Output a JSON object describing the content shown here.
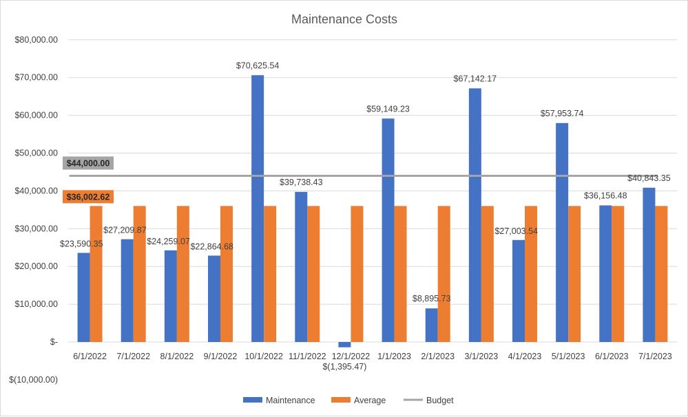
{
  "chart_data": {
    "type": "bar",
    "title": "Maintenance Costs",
    "xlabel": "",
    "ylabel": "",
    "ylim": [
      -10000,
      80000
    ],
    "y_ticks": [
      -10000,
      0,
      10000,
      20000,
      30000,
      40000,
      50000,
      60000,
      70000,
      80000
    ],
    "y_tick_labels": [
      "$(10,000.00)",
      "$-",
      "$10,000.00",
      "$20,000.00",
      "$30,000.00",
      "$40,000.00",
      "$50,000.00",
      "$60,000.00",
      "$70,000.00",
      "$80,000.00"
    ],
    "grid": true,
    "legend_position": "bottom",
    "categories": [
      "6/1/2022",
      "7/1/2022",
      "8/1/2022",
      "9/1/2022",
      "10/1/2022",
      "11/1/2022",
      "12/1/2022",
      "1/1/2023",
      "2/1/2023",
      "3/1/2023",
      "4/1/2023",
      "5/1/2023",
      "6/1/2023",
      "7/1/2023"
    ],
    "series": [
      {
        "name": "Maintenance",
        "kind": "bar",
        "color": "#4472C4",
        "values": [
          23590.35,
          27209.87,
          24259.07,
          22864.68,
          70625.54,
          39738.43,
          -1395.47,
          59149.23,
          8895.73,
          67142.17,
          27003.54,
          57953.74,
          36156.48,
          40843.35
        ],
        "labels": [
          "$23,590.35",
          "$27,209.87",
          "$24,259.07",
          "$22,864.68",
          "$70,625.54",
          "$39,738.43",
          "$(1,395.47)",
          "$59,149.23",
          "$8,895.73",
          "$67,142.17",
          "$27,003.54",
          "$57,953.74",
          "$36,156.48",
          "$40,843.35"
        ]
      },
      {
        "name": "Average",
        "kind": "bar",
        "color": "#ED7D31",
        "values": [
          36002.62,
          36002.62,
          36002.62,
          36002.62,
          36002.62,
          36002.62,
          36002.62,
          36002.62,
          36002.62,
          36002.62,
          36002.62,
          36002.62,
          36002.62,
          36002.62
        ],
        "callout_label": "$36,002.62",
        "callout_bg": "#ED7D31"
      },
      {
        "name": "Budget",
        "kind": "line",
        "color": "#A5A5A5",
        "values": [
          44000,
          44000,
          44000,
          44000,
          44000,
          44000,
          44000,
          44000,
          44000,
          44000,
          44000,
          44000,
          44000,
          44000
        ],
        "callout_label": "$44,000.00",
        "callout_bg": "#A5A5A5"
      }
    ]
  }
}
